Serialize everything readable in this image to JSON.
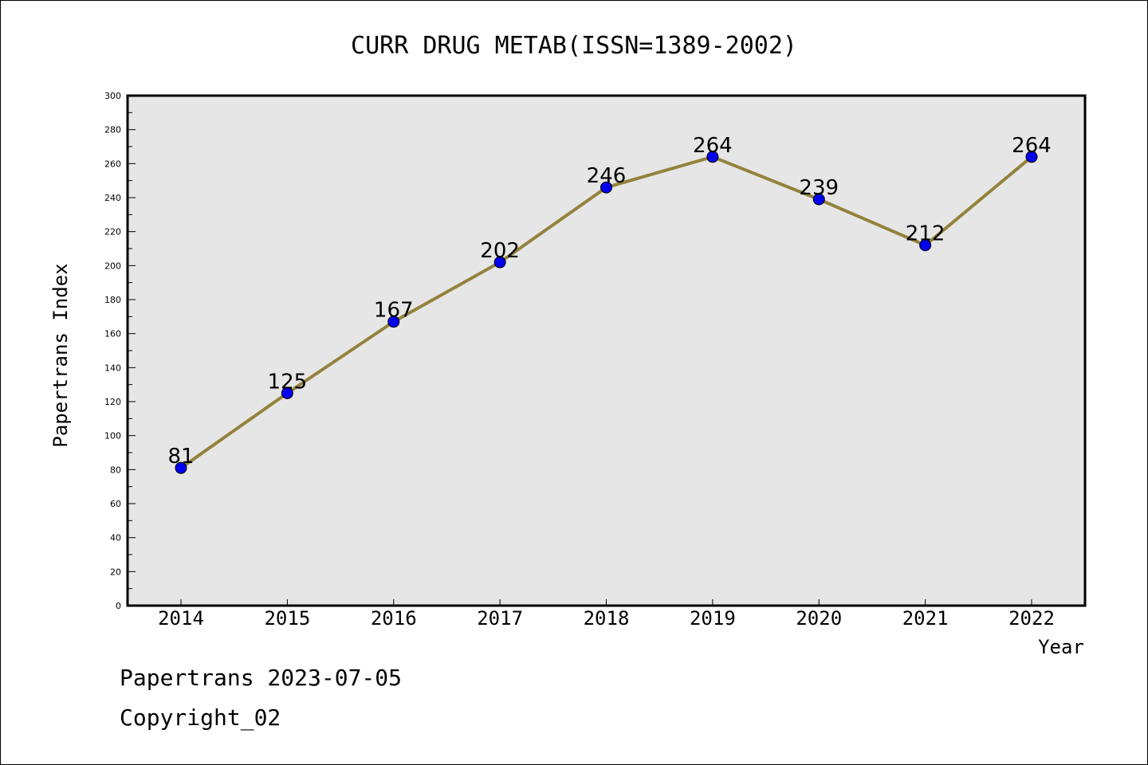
{
  "chart_data": {
    "type": "line",
    "title": "CURR DRUG METAB(ISSN=1389-2002)",
    "xlabel": "Year",
    "ylabel": "Papertrans Index",
    "categories": [
      "2014",
      "2015",
      "2016",
      "2017",
      "2018",
      "2019",
      "2020",
      "2021",
      "2022"
    ],
    "values": [
      81,
      125,
      167,
      202,
      246,
      264,
      239,
      212,
      264
    ],
    "ylim": [
      0,
      300
    ],
    "yticks": [
      0,
      20,
      40,
      60,
      80,
      100,
      120,
      140,
      160,
      180,
      200,
      220,
      240,
      260,
      280,
      300
    ],
    "grid": false,
    "data_labels": true,
    "colors": {
      "line": "#94823c",
      "marker": "#0000ee",
      "plot_bg": "#e6e6e6"
    }
  },
  "footer": {
    "line1": "Papertrans 2023-07-05",
    "line2": "Copyright_02"
  }
}
